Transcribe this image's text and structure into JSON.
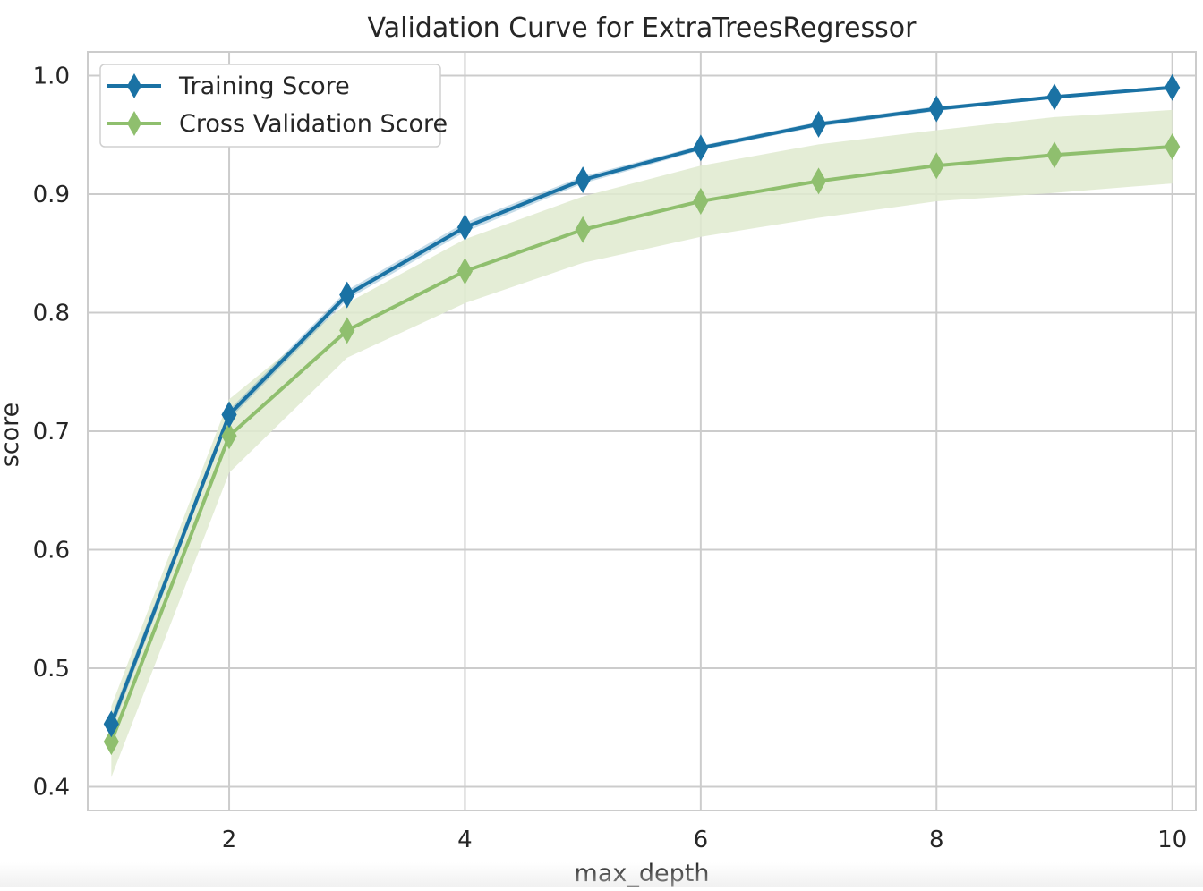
{
  "chart_data": {
    "type": "line",
    "title": "Validation Curve for ExtraTreesRegressor",
    "xlabel": "max_depth",
    "ylabel": "score",
    "xlim": [
      0.8,
      10.2
    ],
    "ylim": [
      0.38,
      1.02
    ],
    "xticks": [
      2,
      4,
      6,
      8,
      10
    ],
    "yticks": [
      0.4,
      0.5,
      0.6,
      0.7,
      0.8,
      0.9,
      1.0
    ],
    "ytick_labels": [
      "0.4",
      "0.5",
      "0.6",
      "0.7",
      "0.8",
      "0.9",
      "1.0"
    ],
    "grid": true,
    "legend_position": "top-left",
    "x": [
      1,
      2,
      3,
      4,
      5,
      6,
      7,
      8,
      9,
      10
    ],
    "series": [
      {
        "name": "Training Score",
        "color": "#1a72a4",
        "values": [
          0.453,
          0.714,
          0.815,
          0.872,
          0.912,
          0.939,
          0.959,
          0.972,
          0.982,
          0.99
        ],
        "band_low": [
          0.447,
          0.71,
          0.811,
          0.868,
          0.909,
          0.937,
          0.957,
          0.97,
          0.981,
          0.989
        ],
        "band_high": [
          0.459,
          0.718,
          0.819,
          0.876,
          0.915,
          0.941,
          0.961,
          0.974,
          0.983,
          0.991
        ]
      },
      {
        "name": "Cross Validation Score",
        "color": "#8fbf6e",
        "band_color": "#dfeacf",
        "values": [
          0.438,
          0.696,
          0.785,
          0.835,
          0.87,
          0.894,
          0.911,
          0.924,
          0.933,
          0.94
        ],
        "band_low": [
          0.408,
          0.665,
          0.762,
          0.808,
          0.842,
          0.864,
          0.88,
          0.894,
          0.901,
          0.909
        ],
        "band_high": [
          0.468,
          0.727,
          0.808,
          0.862,
          0.898,
          0.924,
          0.942,
          0.954,
          0.965,
          0.971
        ]
      }
    ]
  }
}
